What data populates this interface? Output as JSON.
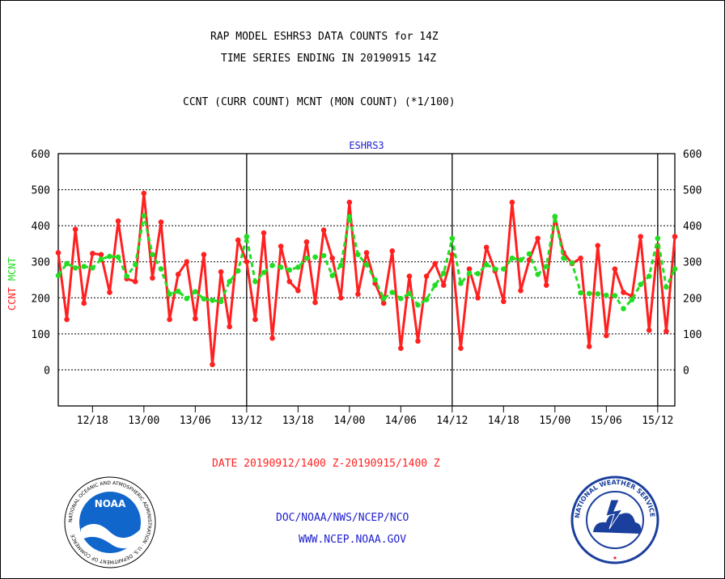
{
  "title_line1": "RAP MODEL ESHRS3 DATA COUNTS for 14Z",
  "title_line2": "TIME SERIES ENDING IN 20190915 14Z",
  "subtitle": "CCNT (CURR COUNT) MCNT (MON COUNT) (*1/100)",
  "date_range": "DATE 20190912/1400 Z-20190915/1400 Z",
  "footer_org": "DOC/NOAA/NWS/NCEP/NCO",
  "footer_url": "WWW.NCEP.NOAA.GOV",
  "noaa_logo_text": "NOAA",
  "nws_logo_text": "NATIONAL WEATHER SERVICE",
  "noaa_ring_text": "NATIONAL OCEANIC AND ATMOSPHERIC ADMINISTRATION · U.S. DEPARTMENT OF COMMERCE",
  "colors": {
    "ccnt": "#ff2020",
    "mcnt": "#22dd22",
    "text_blue": "#2020d0",
    "axis": "#000000"
  },
  "chart_data": {
    "type": "line",
    "title": "ESHRS3",
    "ylabel_parts": [
      "CCNT",
      "MCNT"
    ],
    "ylim": [
      -100,
      600
    ],
    "yticks": [
      0,
      100,
      200,
      300,
      400,
      500,
      600
    ],
    "grid": true,
    "xtick_labels": [
      "12/18",
      "13/00",
      "13/06",
      "13/12",
      "13/18",
      "14/00",
      "14/06",
      "14/12",
      "14/18",
      "15/00",
      "15/06",
      "15/12"
    ],
    "xtick_hours": [
      4,
      10,
      16,
      22,
      28,
      34,
      40,
      46,
      52,
      58,
      64,
      70
    ],
    "day_boundaries_hours": [
      22,
      46,
      70
    ],
    "x_hours_start": 0,
    "x_hours_end": 72,
    "series": [
      {
        "name": "CCNT",
        "values": [
          325,
          140,
          390,
          185,
          323,
          320,
          215,
          413,
          253,
          245,
          490,
          255,
          410,
          140,
          265,
          300,
          142,
          320,
          15,
          272,
          120,
          360,
          300,
          140,
          380,
          88,
          343,
          245,
          220,
          355,
          187,
          388,
          310,
          200,
          465,
          210,
          325,
          240,
          185,
          330,
          60,
          260,
          80,
          260,
          295,
          235,
          320,
          60,
          280,
          200,
          340,
          275,
          190,
          465,
          220,
          305,
          365,
          235,
          425,
          325,
          295,
          310,
          65,
          345,
          95,
          280,
          215,
          205,
          370,
          110,
          345,
          107,
          370
        ]
      },
      {
        "name": "MCNT",
        "values": [
          262,
          295,
          283,
          287,
          283,
          307,
          315,
          313,
          260,
          292,
          428,
          320,
          280,
          210,
          218,
          198,
          217,
          197,
          193,
          190,
          245,
          275,
          370,
          245,
          270,
          290,
          285,
          277,
          285,
          310,
          313,
          317,
          262,
          290,
          425,
          320,
          292,
          250,
          198,
          215,
          198,
          212,
          180,
          195,
          235,
          268,
          365,
          240,
          268,
          267,
          292,
          280,
          280,
          310,
          305,
          322,
          265,
          287,
          426,
          310,
          297,
          214,
          212,
          211,
          207,
          206,
          170,
          195,
          237,
          260,
          365,
          230,
          280
        ]
      }
    ]
  }
}
